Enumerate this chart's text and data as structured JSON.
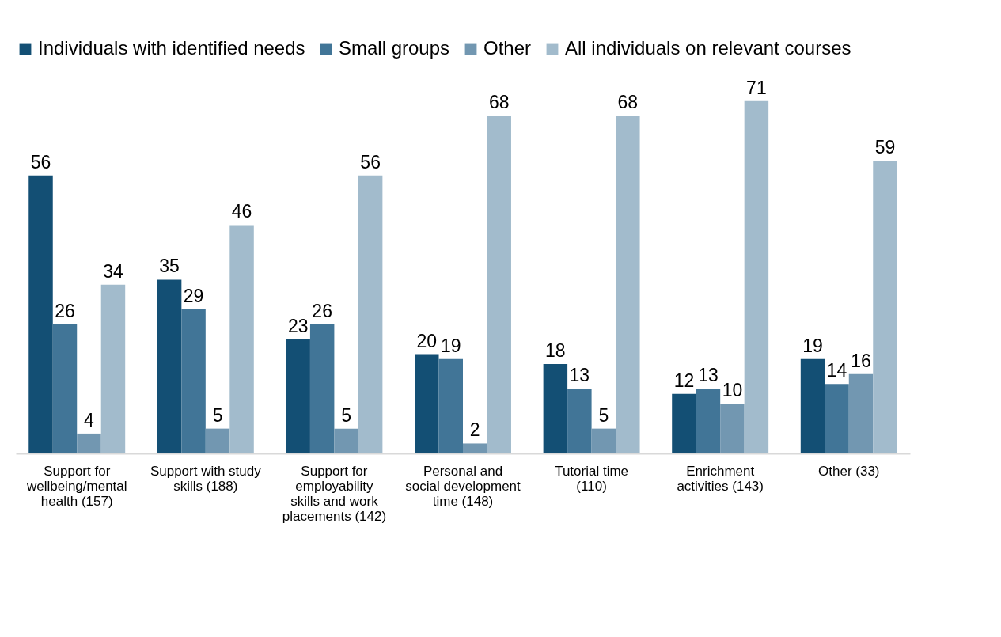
{
  "chart_data": {
    "type": "bar",
    "categories": [
      "Support for wellbeing/mental health (157)",
      "Support with study skills (188)",
      "Support for employability skills and work placements (142)",
      "Personal and social development time (148)",
      "Tutorial time (110)",
      "Enrichment activities (143)",
      "Other (33)"
    ],
    "series": [
      {
        "name": "Individuals with identified needs",
        "color": "#134f74",
        "values": [
          56,
          35,
          23,
          20,
          18,
          12,
          19
        ]
      },
      {
        "name": "Small groups",
        "color": "#417597",
        "values": [
          26,
          29,
          26,
          19,
          13,
          13,
          14
        ]
      },
      {
        "name": "Other",
        "color": "#7297b1",
        "values": [
          4,
          5,
          5,
          2,
          5,
          10,
          16
        ]
      },
      {
        "name": "All individuals on relevant courses",
        "color": "#a2bbcc",
        "values": [
          34,
          46,
          56,
          68,
          68,
          71,
          59
        ]
      }
    ],
    "data_labels": true,
    "legend": "top",
    "grid": false,
    "tick_labels": "x"
  }
}
